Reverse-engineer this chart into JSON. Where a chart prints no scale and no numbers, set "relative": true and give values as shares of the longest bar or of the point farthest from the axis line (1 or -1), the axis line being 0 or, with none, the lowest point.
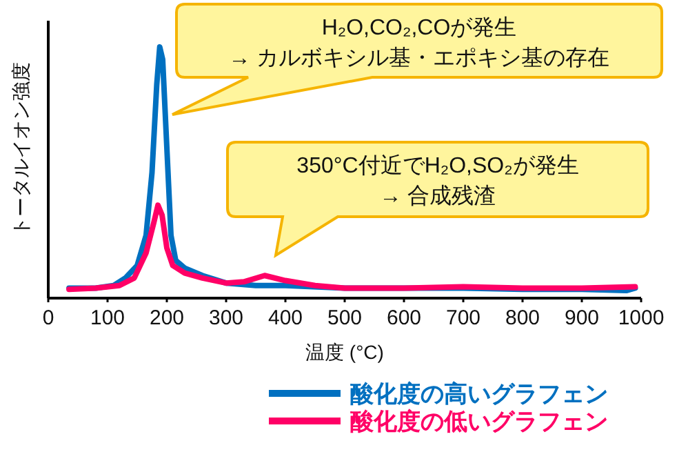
{
  "chart_data": {
    "type": "line",
    "relative": true,
    "xlabel": "温度 (°C)",
    "ylabel": "トータルイオン強度",
    "xlim": [
      0,
      1000
    ],
    "xticks": [
      0,
      100,
      200,
      300,
      400,
      500,
      600,
      700,
      800,
      900,
      1000
    ],
    "grid": false,
    "legend": "bottom right",
    "marker": "none",
    "line_style": "solid",
    "annotations": [
      "H₂O,CO₂,COが発生\n→ カルボキシル基・エポキシ基の存在",
      "350°C付近でH₂O,SO₂が発生\n→ 合成残渣"
    ],
    "series": [
      {
        "name": "酸化度の高いグラフェン",
        "color": "#0070c0",
        "x": [
          35,
          80,
          110,
          130,
          150,
          165,
          175,
          183,
          188,
          193,
          200,
          207,
          215,
          230,
          260,
          300,
          350,
          400,
          500,
          600,
          700,
          800,
          900,
          975,
          990
        ],
        "values": [
          0.04,
          0.04,
          0.05,
          0.08,
          0.13,
          0.25,
          0.5,
          0.85,
          1.0,
          0.95,
          0.6,
          0.25,
          0.15,
          0.12,
          0.09,
          0.06,
          0.05,
          0.05,
          0.04,
          0.04,
          0.04,
          0.035,
          0.035,
          0.03,
          0.04
        ]
      },
      {
        "name": "酸化度の低いグラフェン",
        "color": "#ff0066",
        "x": [
          35,
          80,
          120,
          145,
          165,
          178,
          185,
          192,
          200,
          210,
          230,
          260,
          300,
          330,
          365,
          400,
          450,
          500,
          600,
          700,
          800,
          900,
          990
        ],
        "values": [
          0.035,
          0.04,
          0.05,
          0.08,
          0.18,
          0.3,
          0.37,
          0.33,
          0.2,
          0.13,
          0.1,
          0.08,
          0.06,
          0.065,
          0.09,
          0.07,
          0.05,
          0.04,
          0.04,
          0.045,
          0.04,
          0.04,
          0.045
        ]
      }
    ]
  }
}
